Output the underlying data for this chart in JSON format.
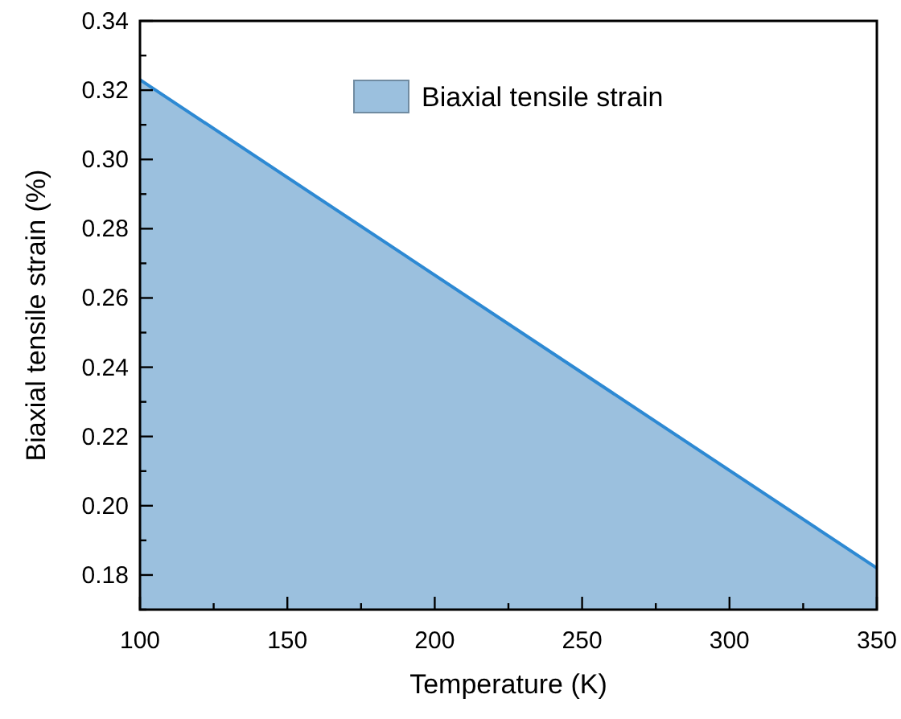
{
  "chart_data": {
    "type": "area",
    "xlabel": "Temperature (K)",
    "ylabel": "Biaxial tensile strain (%)",
    "x": [
      100,
      350
    ],
    "series": [
      {
        "name": "Biaxial tensile strain",
        "color": "#9bc0de",
        "values": [
          0.323,
          0.182
        ]
      }
    ],
    "xlim": [
      100,
      350
    ],
    "ylim": [
      0.17,
      0.34
    ],
    "xticks": [
      100,
      {
        "value": 125,
        "label": null
      },
      150,
      {
        "value": 175,
        "label": null
      },
      200,
      {
        "value": 225,
        "label": null
      },
      250,
      {
        "value": 275,
        "label": null
      },
      300,
      {
        "value": 325,
        "label": null
      },
      350
    ],
    "yticks": [
      {
        "value": 0.17,
        "label": null
      },
      0.18,
      {
        "value": 0.19,
        "label": null
      },
      {
        "value": 0.2,
        "label": "0.20"
      },
      {
        "value": 0.21,
        "label": null
      },
      0.22,
      {
        "value": 0.23,
        "label": null
      },
      0.24,
      {
        "value": 0.25,
        "label": null
      },
      0.26,
      {
        "value": 0.27,
        "label": null
      },
      0.28,
      {
        "value": 0.29,
        "label": null
      },
      {
        "value": 0.3,
        "label": "0.30"
      },
      {
        "value": 0.31,
        "label": null
      },
      0.32,
      {
        "value": 0.33,
        "label": null
      },
      0.34
    ],
    "legend": "top right",
    "grid": false
  }
}
